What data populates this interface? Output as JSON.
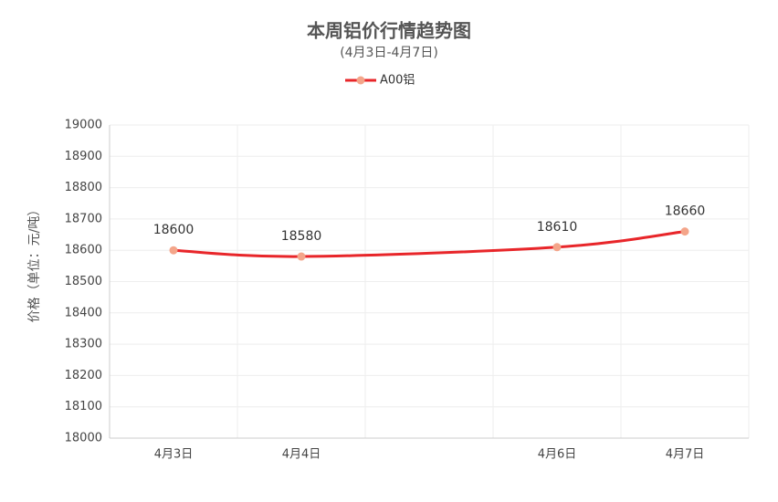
{
  "chart_data": {
    "type": "line",
    "title": "本周铝价行情趋势图",
    "subtitle": "(4月3日-4月7日)",
    "y_label": "价格（单位：元/吨）",
    "categories": [
      "4月3日",
      "4月4日",
      null,
      "4月6日",
      "4月7日"
    ],
    "series": [
      {
        "name": "A00铝",
        "color": "#e8262a",
        "marker_color": "#f4a58a",
        "values": [
          18600,
          18580,
          null,
          18610,
          18660
        ]
      }
    ],
    "connect_gaps": true,
    "smooth": true,
    "ylim": [
      18000,
      19000
    ],
    "yticks": [
      18000,
      18100,
      18200,
      18300,
      18400,
      18500,
      18600,
      18700,
      18800,
      18900,
      19000
    ],
    "grid": true,
    "legend": "top",
    "data_labels": true
  }
}
